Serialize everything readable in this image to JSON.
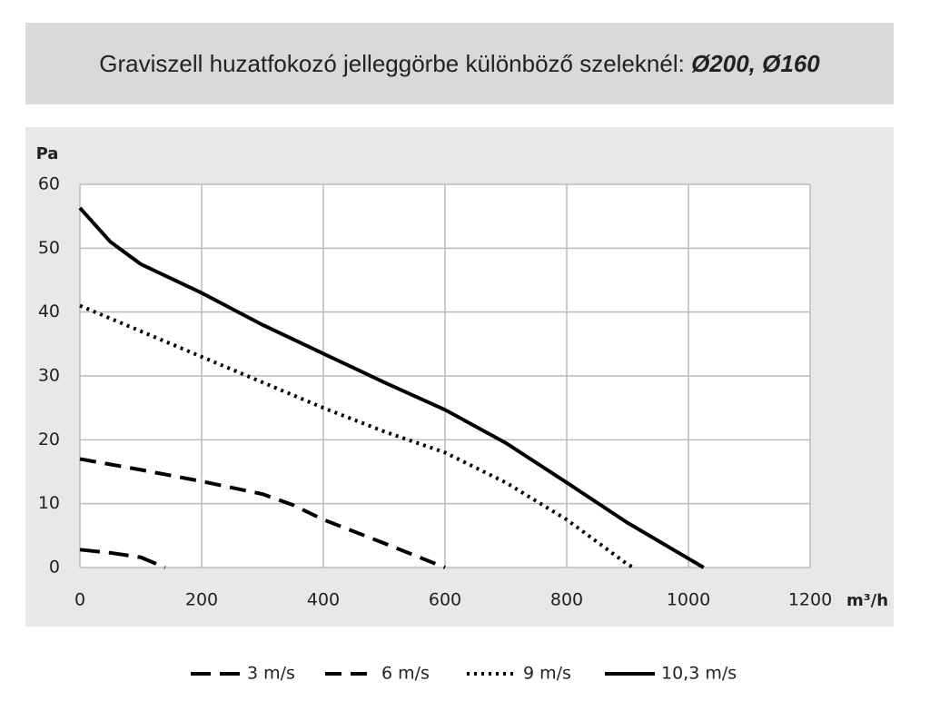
{
  "chart_data": {
    "type": "line",
    "title": "Graviszell huzatfokozó jelleggörbe különböző szeleknél:",
    "title_highlight": "Ø200, Ø160",
    "y_label": "Pa",
    "x_label": "m³/h",
    "xlim": [
      0,
      1200
    ],
    "xticks": [
      0,
      200,
      400,
      600,
      800,
      1000,
      1200
    ],
    "ylim": [
      0,
      60
    ],
    "yticks": [
      0,
      10,
      20,
      30,
      40,
      50,
      60
    ],
    "grid": true,
    "legend": "bottom",
    "series": [
      {
        "name": "3 m/s",
        "color": "#000000",
        "dash": "long-dash",
        "x": [
          0,
          50,
          100,
          120,
          140
        ],
        "values": [
          2.8,
          2.3,
          1.6,
          0.8,
          0
        ]
      },
      {
        "name": "6 m/s",
        "color": "#000000",
        "dash": "dash",
        "x": [
          0,
          100,
          200,
          300,
          350,
          400,
          500,
          600
        ],
        "values": [
          17,
          15.3,
          13.5,
          11.5,
          9.8,
          7.5,
          3.8,
          0
        ]
      },
      {
        "name": "9 m/s",
        "color": "#000000",
        "dash": "dot",
        "x": [
          0,
          100,
          200,
          300,
          400,
          500,
          600,
          700,
          800,
          900,
          910
        ],
        "values": [
          41,
          37,
          33,
          29,
          25,
          21.3,
          18,
          13.3,
          7.5,
          0.5,
          0
        ]
      },
      {
        "name": "10,3 m/s",
        "color": "#000000",
        "dash": "solid",
        "x": [
          0,
          50,
          100,
          200,
          300,
          400,
          500,
          600,
          700,
          800,
          900,
          1025
        ],
        "values": [
          56.3,
          51,
          47.5,
          43,
          38,
          33.5,
          29,
          24.7,
          19.5,
          13.3,
          7,
          0
        ]
      }
    ]
  }
}
